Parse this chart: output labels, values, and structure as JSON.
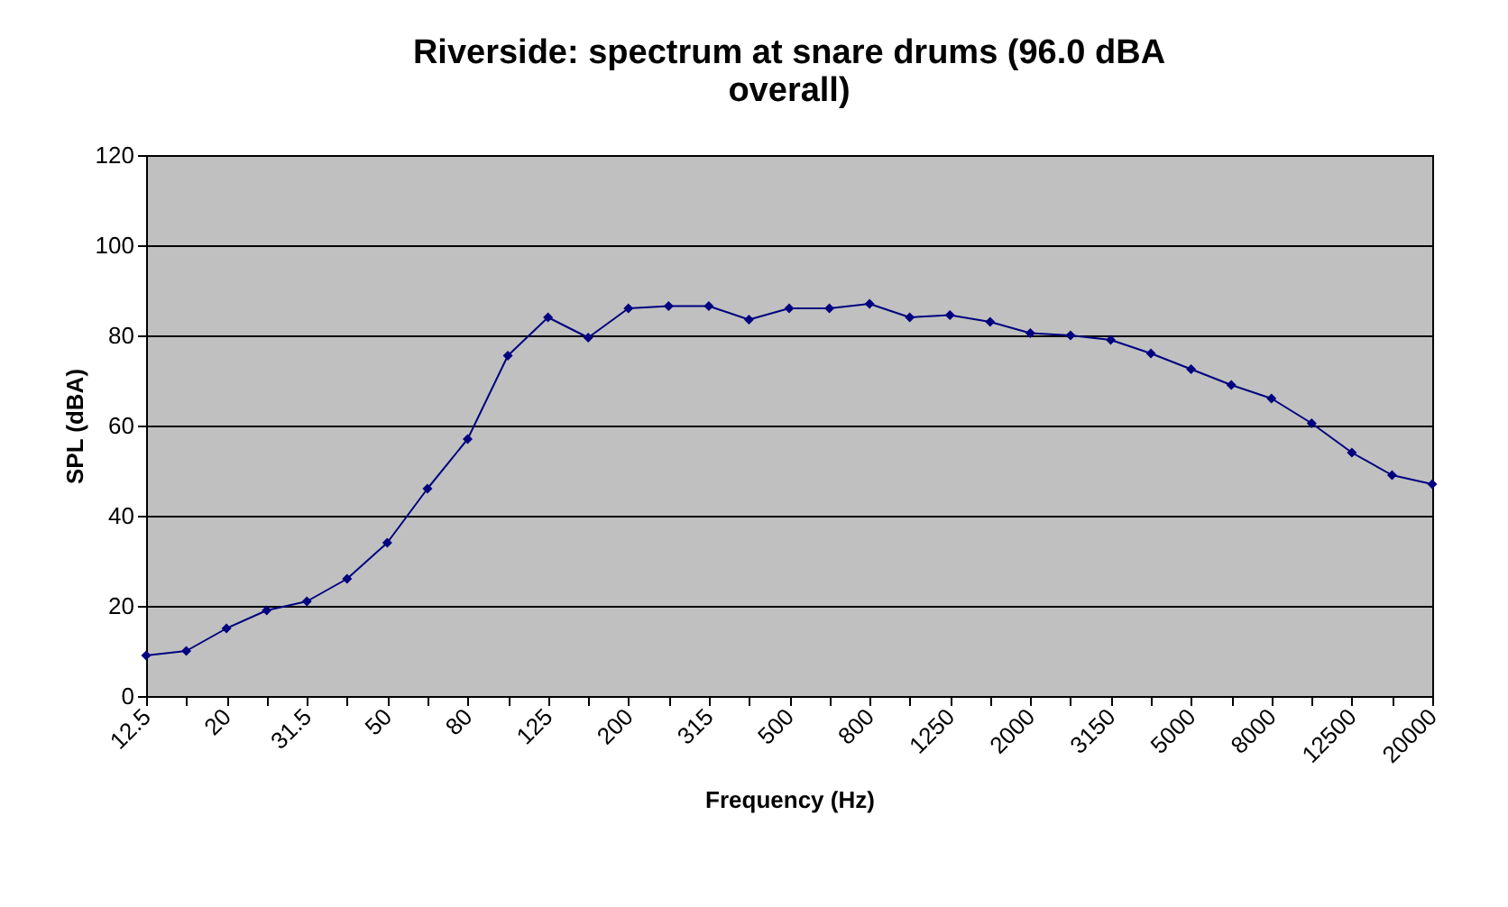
{
  "chart_data": {
    "type": "line",
    "title": "Riverside: spectrum at snare drums (96.0 dBA overall)",
    "xlabel": "Frequency (Hz)",
    "ylabel": "SPL (dBA)",
    "categories": [
      "12.5",
      null,
      "20",
      null,
      "31.5",
      null,
      "50",
      null,
      "80",
      null,
      "125",
      null,
      "200",
      null,
      "315",
      null,
      "500",
      null,
      "800",
      null,
      "1250",
      null,
      "2000",
      null,
      "3150",
      null,
      "5000",
      null,
      "8000",
      null,
      "12500",
      null,
      "20000"
    ],
    "series": [
      {
        "color": "#000080",
        "values": [
          9,
          10,
          15,
          19,
          21,
          26,
          34,
          46,
          57,
          75.5,
          84,
          79.5,
          86,
          86.5,
          86.5,
          83.5,
          86,
          86,
          87,
          84,
          84.5,
          83,
          80.5,
          80,
          79,
          76,
          72.5,
          69,
          66,
          60.5,
          54,
          49,
          47
        ]
      }
    ],
    "ylim": [
      0,
      120
    ],
    "yticks": [
      0,
      20,
      40,
      60,
      80,
      100,
      120
    ],
    "grid": "y",
    "marker": "diamond",
    "line_style": "solid"
  }
}
